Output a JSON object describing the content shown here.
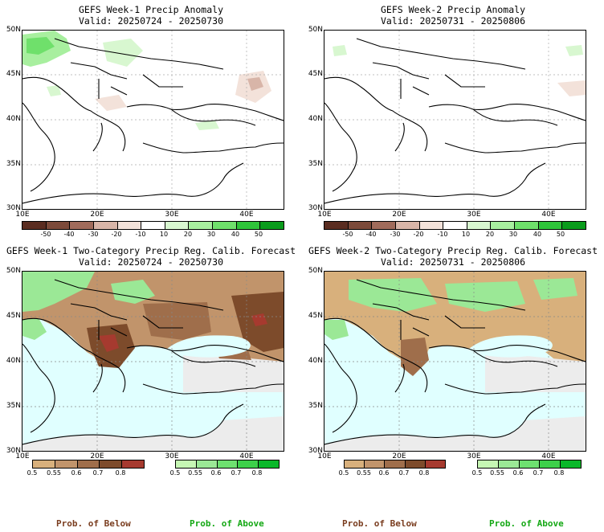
{
  "panels": [
    {
      "title_line1": "GEFS Week-1 Precip Anomaly",
      "title_line2": "Valid: 20250724 - 20250730",
      "lat_labels": [
        "50N",
        "45N",
        "40N",
        "35N",
        "30N"
      ],
      "lon_labels": [
        "10E",
        "20E",
        "30E",
        "40E"
      ],
      "legend_labels": [
        "-50",
        "-40",
        "-30",
        "-20",
        "-10",
        "10",
        "20",
        "30",
        "40",
        "50"
      ]
    },
    {
      "title_line1": "GEFS Week-2 Precip Anomaly",
      "title_line2": "Valid: 20250731 - 20250806",
      "lat_labels": [
        "50N",
        "45N",
        "40N",
        "35N",
        "30N"
      ],
      "lon_labels": [
        "10E",
        "20E",
        "30E",
        "40E"
      ],
      "legend_labels": [
        "-50",
        "-40",
        "-30",
        "-20",
        "-10",
        "10",
        "20",
        "30",
        "40",
        "50"
      ]
    },
    {
      "title_line1": "GEFS Week-1 Two-Category Precip Reg. Calib. Forecast",
      "title_line2": "Valid: 20250724 - 20250730",
      "lat_labels": [
        "50N",
        "45N",
        "40N",
        "35N",
        "30N"
      ],
      "lon_labels": [
        "10E",
        "20E",
        "30E",
        "40E"
      ],
      "below_labels": [
        "0.5",
        "0.55",
        "0.6",
        "0.7",
        "0.8"
      ],
      "above_labels": [
        "0.5",
        "0.55",
        "0.6",
        "0.7",
        "0.8"
      ],
      "prob_below": "Prob. of Below",
      "prob_above": "Prob. of Above"
    },
    {
      "title_line1": "GEFS Week-2 Two-Category Precip Reg. Calib. Forecast",
      "title_line2": "Valid: 20250731 - 20250806",
      "lat_labels": [
        "50N",
        "45N",
        "40N",
        "35N",
        "30N"
      ],
      "lon_labels": [
        "10E",
        "20E",
        "30E",
        "40E"
      ],
      "below_labels": [
        "0.5",
        "0.55",
        "0.6",
        "0.7",
        "0.8"
      ],
      "above_labels": [
        "0.5",
        "0.55",
        "0.6",
        "0.7",
        "0.8"
      ],
      "prob_below": "Prob. of Below",
      "prob_above": "Prob. of Above"
    }
  ],
  "colors": {
    "anomaly_scale": [
      "#5a2c20",
      "#7c4a3a",
      "#a06b5b",
      "#d8b5a8",
      "#f3e2da",
      "#ffffff",
      "#d8f7d0",
      "#a8ef9f",
      "#6fe06b",
      "#2fc43a",
      "#0a9c1c"
    ],
    "below_scale": [
      "#d8b07c",
      "#c1946b",
      "#9f6e4b",
      "#7d4b2b",
      "#a63a2f"
    ],
    "above_scale": [
      "#c6f7b4",
      "#9be896",
      "#6ee070",
      "#3dd04a",
      "#0ab82a"
    ],
    "sea_fill": "#e0ffff",
    "nonsig_land": "#ececec",
    "prob_below_text": "#7a3d1f",
    "prob_above_text": "#14a814"
  }
}
